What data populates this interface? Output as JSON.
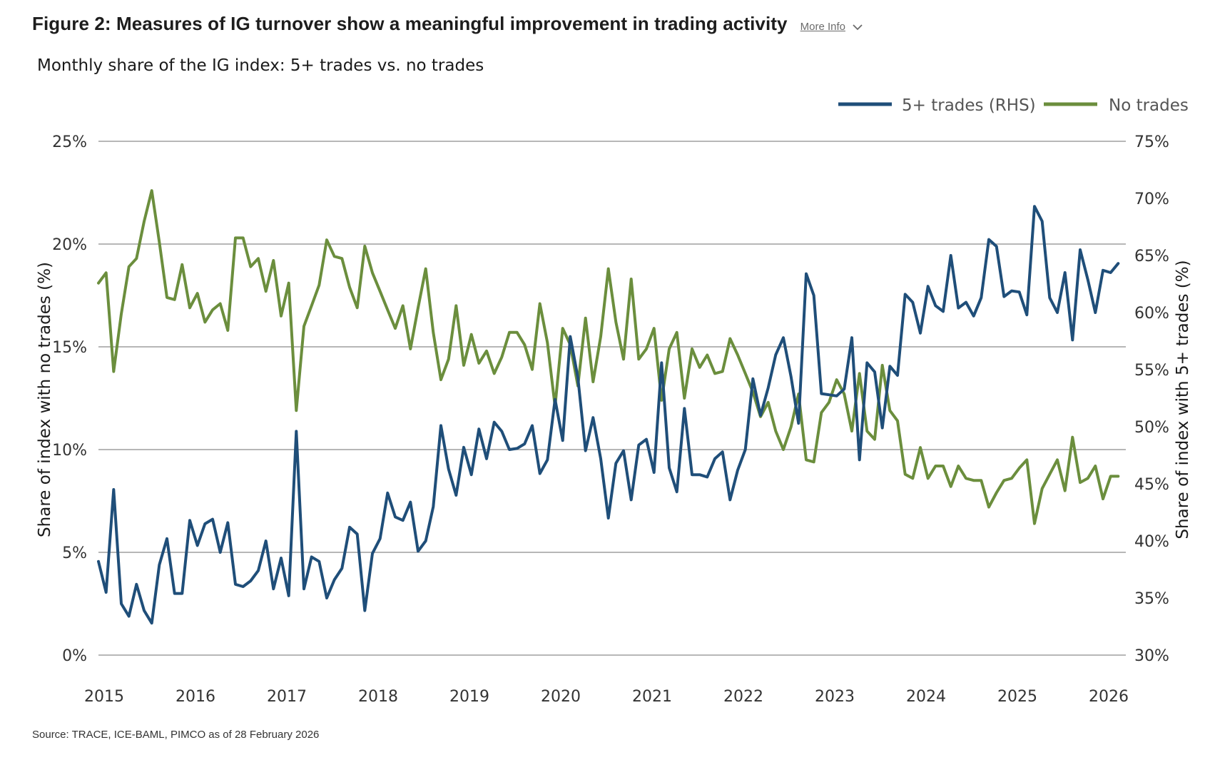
{
  "header": {
    "title": "Figure 2: Measures of IG turnover show a meaningful improvement in trading activity",
    "more_info": "More Info",
    "more_info_icon": "chevron-down-icon"
  },
  "subtitle": "Monthly share of the IG index: 5+ trades vs. no trades",
  "source": "Source: TRACE, ICE-BAML, PIMCO as of 28 February 2026",
  "colors": {
    "five_plus": "#1f4e79",
    "no_trades": "#6b8e3d",
    "gridline": "#8c8c8c"
  },
  "chart_data": {
    "type": "line",
    "grid": true,
    "legend_position": "top-right",
    "x_ticks": [
      "2015",
      "2016",
      "2017",
      "2018",
      "2019",
      "2020",
      "2021",
      "2022",
      "2023",
      "2024",
      "2025",
      "2026"
    ],
    "x_start": "2015-01",
    "x_end": "2026-04",
    "left_axis": {
      "label": "Share of index with no trades (%)",
      "range": [
        0,
        25
      ],
      "ticks": [
        "0%",
        "5%",
        "10%",
        "15%",
        "20%",
        "25%"
      ]
    },
    "right_axis": {
      "label": "Share of index with 5+ trades (%)",
      "range": [
        30,
        75
      ],
      "ticks": [
        "30%",
        "35%",
        "40%",
        "45%",
        "50%",
        "55%",
        "60%",
        "65%",
        "70%",
        "75%"
      ]
    },
    "series": [
      {
        "name": "5+ trades (RHS)",
        "axis": "right",
        "color": "#1f4e79",
        "values": [
          38.2,
          35.5,
          44.5,
          34.5,
          33.4,
          36.2,
          33.9,
          32.8,
          37.9,
          40.2,
          35.4,
          35.4,
          41.8,
          39.6,
          41.5,
          41.9,
          39.0,
          41.6,
          36.2,
          36.0,
          36.5,
          37.4,
          40.0,
          35.8,
          38.5,
          35.2,
          49.6,
          35.8,
          38.6,
          38.2,
          35.0,
          36.6,
          37.6,
          41.2,
          40.6,
          33.9,
          38.9,
          40.2,
          44.2,
          42.1,
          41.8,
          43.4,
          39.1,
          40.0,
          43.0,
          50.1,
          46.3,
          44.0,
          48.2,
          45.8,
          49.8,
          47.2,
          50.4,
          49.6,
          48.0,
          48.1,
          48.5,
          50.1,
          45.9,
          47.1,
          52.4,
          48.8,
          57.9,
          54.3,
          47.9,
          50.8,
          47.2,
          42.0,
          46.8,
          47.9,
          43.6,
          48.4,
          48.9,
          46.0,
          55.6,
          46.4,
          44.3,
          51.6,
          45.8,
          45.8,
          45.6,
          47.2,
          47.8,
          43.6,
          46.2,
          48.0,
          54.2,
          51.0,
          53.4,
          56.3,
          57.8,
          54.4,
          50.3,
          63.4,
          61.5,
          52.9,
          52.8,
          52.7,
          53.3,
          57.8,
          47.1,
          55.6,
          54.8,
          49.9,
          55.3,
          54.5,
          61.6,
          60.9,
          58.2,
          62.3,
          60.6,
          60.1,
          65.0,
          60.4,
          60.9,
          59.7,
          61.3,
          66.4,
          65.8,
          61.4,
          61.9,
          61.8,
          59.8,
          69.3,
          68.0,
          61.3,
          60.0,
          63.5,
          57.6,
          65.5,
          62.9,
          60.0,
          63.7,
          63.5,
          64.3
        ]
      },
      {
        "name": "No trades",
        "axis": "left",
        "color": "#6b8e3d",
        "values": [
          18.1,
          18.6,
          13.8,
          16.6,
          18.9,
          19.3,
          21.1,
          22.6,
          20.1,
          17.4,
          17.3,
          19.0,
          16.9,
          17.6,
          16.2,
          16.8,
          17.1,
          15.8,
          20.3,
          20.3,
          18.9,
          19.3,
          17.7,
          19.2,
          16.5,
          18.1,
          11.9,
          16.0,
          17.0,
          18.0,
          20.2,
          19.4,
          19.3,
          17.9,
          16.9,
          19.9,
          18.6,
          17.7,
          16.8,
          15.9,
          17.0,
          14.9,
          16.9,
          18.8,
          15.7,
          13.4,
          14.4,
          17.0,
          14.1,
          15.6,
          14.2,
          14.8,
          13.7,
          14.5,
          15.7,
          15.7,
          15.1,
          13.9,
          17.1,
          15.2,
          12.1,
          15.9,
          15.1,
          13.1,
          16.4,
          13.3,
          15.5,
          18.8,
          16.2,
          14.4,
          18.3,
          14.4,
          14.9,
          15.9,
          12.4,
          14.9,
          15.7,
          12.5,
          14.9,
          14.0,
          14.6,
          13.7,
          13.8,
          15.4,
          14.6,
          13.7,
          12.8,
          11.6,
          12.3,
          10.9,
          10.0,
          11.1,
          12.7,
          9.5,
          9.4,
          11.8,
          12.3,
          13.4,
          12.7,
          10.9,
          13.7,
          10.9,
          10.5,
          14.1,
          11.9,
          11.4,
          8.8,
          8.6,
          10.1,
          8.6,
          9.2,
          9.2,
          8.2,
          9.2,
          8.6,
          8.5,
          8.5,
          7.2,
          7.9,
          8.5,
          8.6,
          9.1,
          9.5,
          6.4,
          8.1,
          8.8,
          9.5,
          8.0,
          10.6,
          8.4,
          8.6,
          9.2,
          7.6,
          8.7,
          8.7
        ]
      }
    ]
  }
}
